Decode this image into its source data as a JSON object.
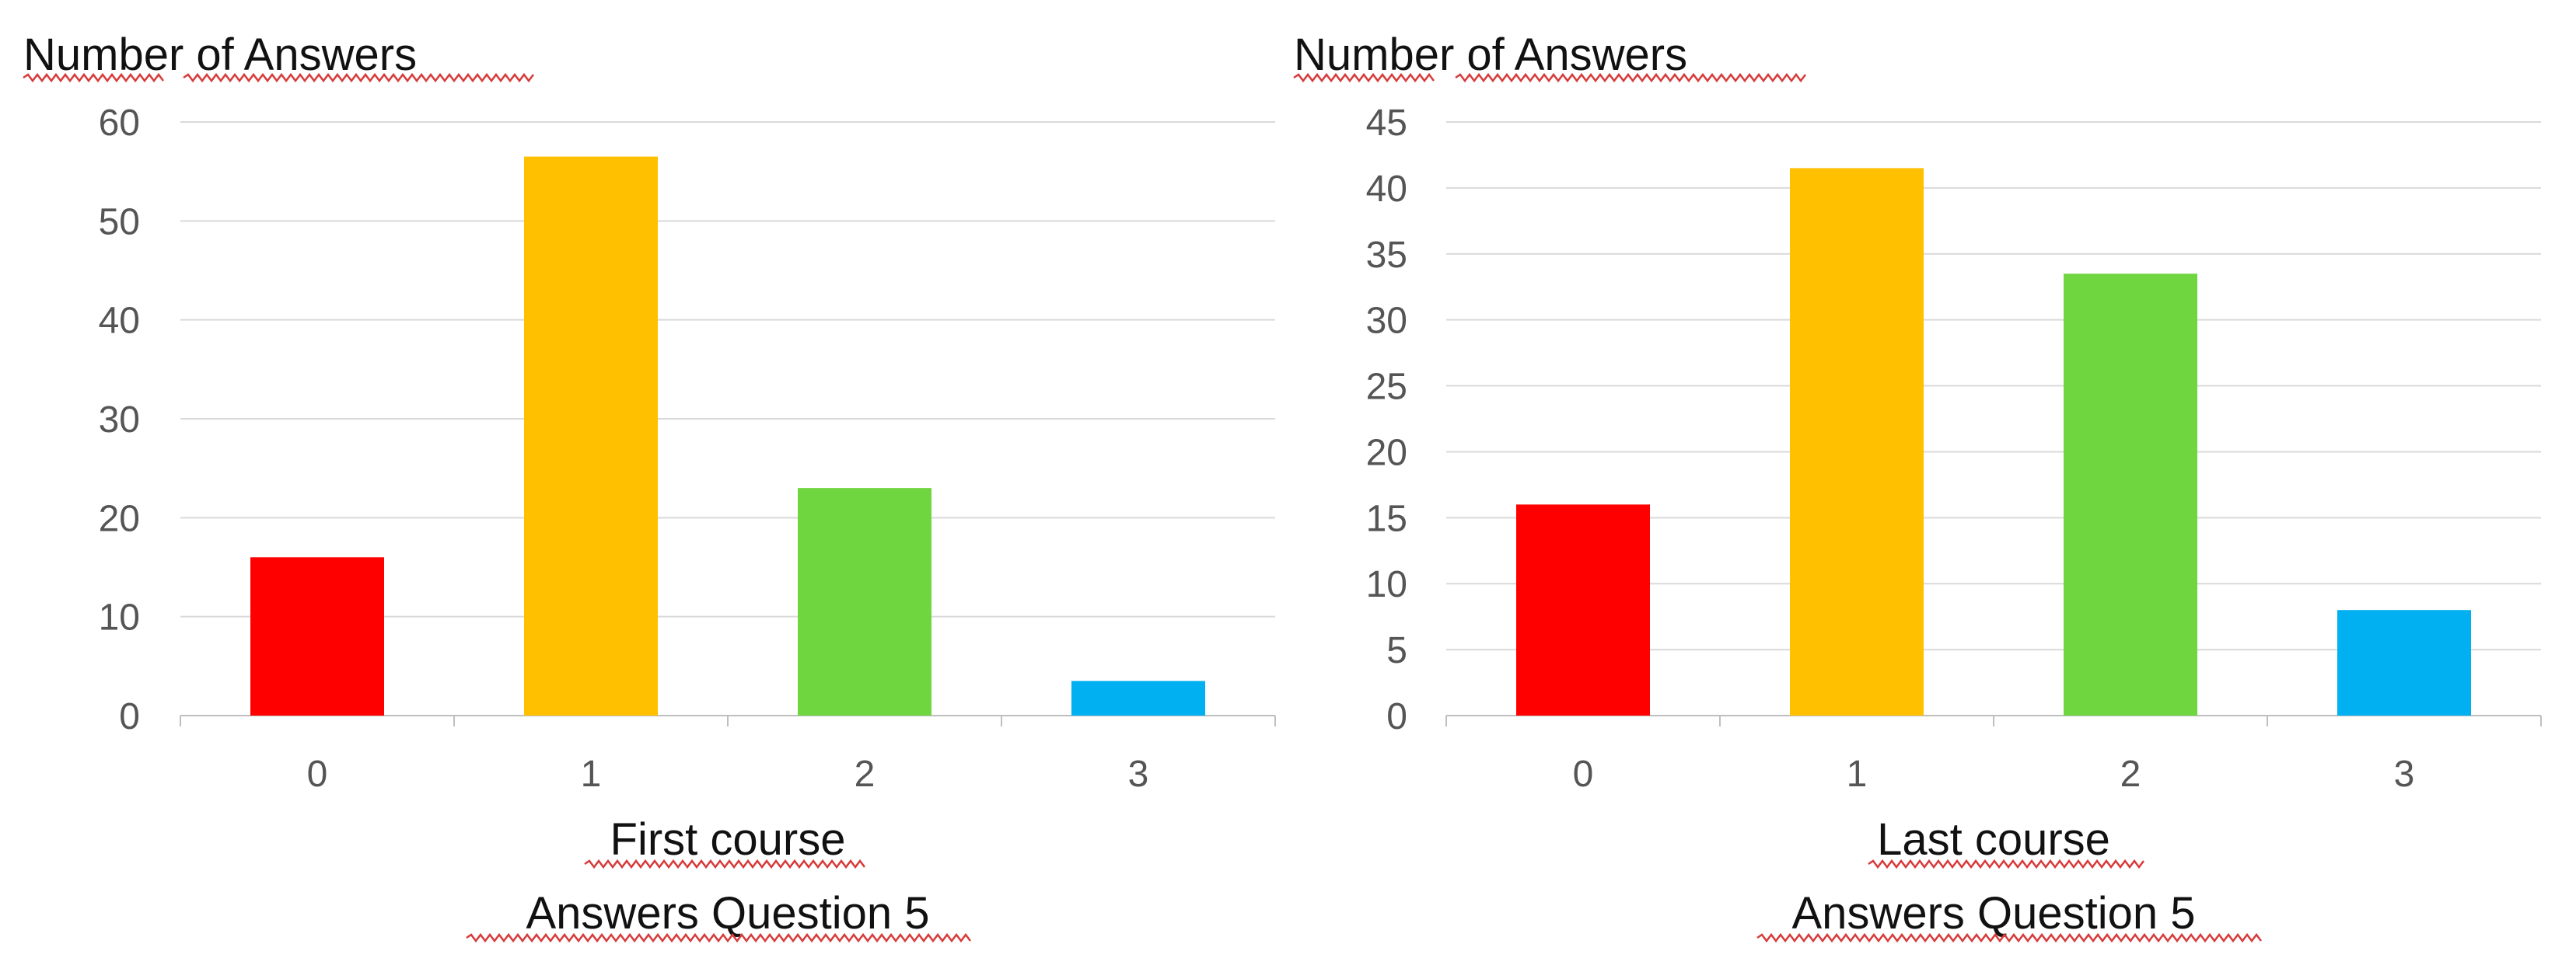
{
  "chart_data": [
    {
      "type": "bar",
      "ylabel": "Number of Answers",
      "xlabel_lines": [
        "First course",
        "Answers Question 5"
      ],
      "categories": [
        "0",
        "1",
        "2",
        "3"
      ],
      "values": [
        16,
        56.5,
        23,
        3.5
      ],
      "colors": [
        "#ff0000",
        "#ffc000",
        "#6fd640",
        "#00b0f0"
      ],
      "ylim": [
        0,
        60
      ],
      "yticks": [
        0,
        10,
        20,
        30,
        40,
        50,
        60
      ],
      "grid": true,
      "legend": "none"
    },
    {
      "type": "bar",
      "ylabel": "Number of Answers",
      "xlabel_lines": [
        "Last course",
        "Answers Question 5"
      ],
      "categories": [
        "0",
        "1",
        "2",
        "3"
      ],
      "values": [
        16,
        41.5,
        33.5,
        8
      ],
      "colors": [
        "#ff0000",
        "#ffc000",
        "#6fd640",
        "#00b0f0"
      ],
      "ylim": [
        0,
        45
      ],
      "yticks": [
        0,
        5,
        10,
        15,
        20,
        25,
        30,
        35,
        40,
        45
      ],
      "grid": true,
      "legend": "none"
    }
  ]
}
